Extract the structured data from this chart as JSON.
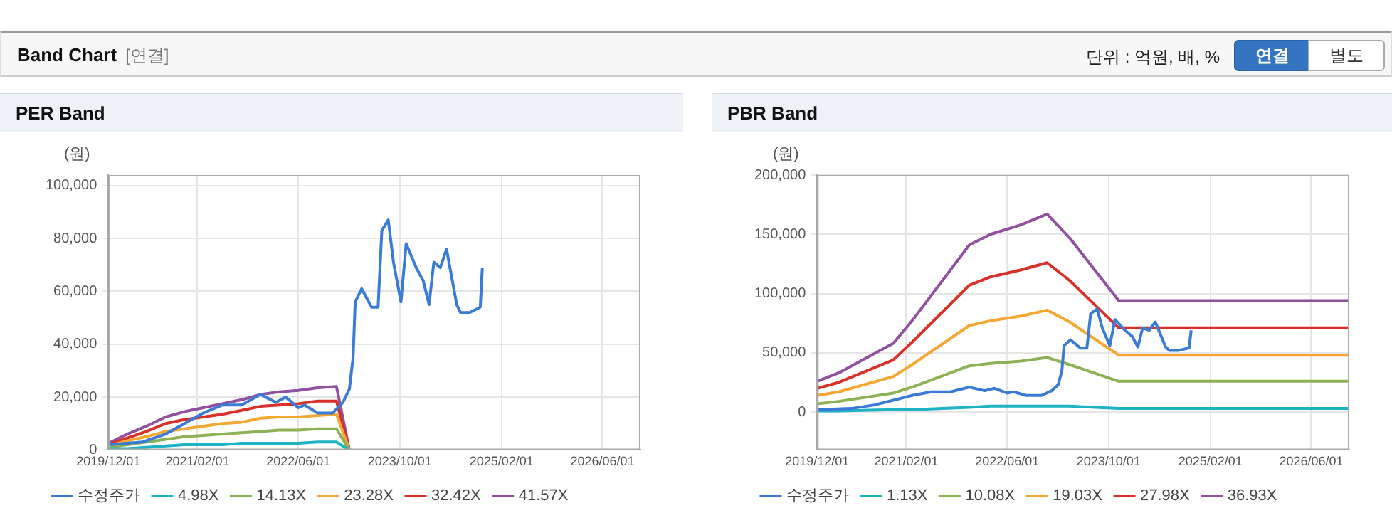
{
  "chart_data": [
    {
      "type": "other",
      "title": "Band Chart",
      "subtitle": "[연결]",
      "annotations": [
        "단위 : 억원, 배, %",
        "연결",
        "별도"
      ]
    },
    {
      "type": "line",
      "title": "PER Band",
      "ylabel": "(원)",
      "xlim": [
        "2019-12-01",
        "2026-12-01"
      ],
      "ylim": [
        0,
        104000
      ],
      "xticks": [
        {
          "value": "2019-12-01",
          "label": "2019/12/01"
        },
        {
          "value": "2021-02-01",
          "label": "2021/02/01"
        },
        {
          "value": "2022-06-01",
          "label": "2022/06/01"
        },
        {
          "value": "2023-10-01",
          "label": "2023/10/01"
        },
        {
          "value": "2025-02-01",
          "label": "2025/02/01"
        },
        {
          "value": "2026-06-01",
          "label": "2026/06/01"
        }
      ],
      "yticks": [
        {
          "value": 0,
          "label": "0"
        },
        {
          "value": 20000,
          "label": "20,000"
        },
        {
          "value": 40000,
          "label": "40,000"
        },
        {
          "value": 60000,
          "label": "60,000"
        },
        {
          "value": 80000,
          "label": "80,000"
        },
        {
          "value": 100000,
          "label": "100,000"
        }
      ],
      "grid": true,
      "legend": "bottom",
      "marker": "none",
      "series": [
        {
          "name": "수정주가",
          "color": "#3a7bd5",
          "x": [
            "2019-12-01",
            "2020-05-13",
            "2020-09-01",
            "2020-12-01",
            "2021-03-01",
            "2021-06-01",
            "2021-09-01",
            "2021-12-01",
            "2022-02-13",
            "2022-04-01",
            "2022-06-01",
            "2022-07-01",
            "2022-09-01",
            "2022-11-13",
            "2023-01-01",
            "2023-02-01",
            "2023-02-19",
            "2023-03-01",
            "2023-04-01",
            "2023-05-19",
            "2023-06-19",
            "2023-07-07",
            "2023-08-07",
            "2023-09-01",
            "2023-10-07",
            "2023-11-01",
            "2023-12-19",
            "2024-01-22",
            "2024-02-19",
            "2024-03-13",
            "2024-04-13",
            "2024-05-13",
            "2024-07-01",
            "2024-07-19",
            "2024-09-01",
            "2024-10-22",
            "2024-11-01"
          ],
          "values": [
            2000,
            3000,
            6000,
            10000,
            14000,
            17000,
            17000,
            21000,
            18000,
            20000,
            16000,
            17000,
            14000,
            14000,
            18000,
            23000,
            35000,
            56000,
            61000,
            54000,
            54000,
            83000,
            87000,
            71000,
            56000,
            78000,
            69000,
            64000,
            55000,
            71000,
            69000,
            76000,
            55000,
            52000,
            52000,
            54000,
            69000
          ]
        },
        {
          "name": "4.98X",
          "color": "#1eb3c4",
          "x": [
            "2019-12-01",
            "2020-03-01",
            "2020-06-01",
            "2020-09-01",
            "2020-12-01",
            "2021-03-01",
            "2021-06-01",
            "2021-09-01",
            "2021-12-01",
            "2022-03-01",
            "2022-06-01",
            "2022-09-01",
            "2022-12-01",
            "2023-02-01"
          ],
          "values": [
            500,
            500,
            1000,
            1500,
            2000,
            2000,
            2000,
            2500,
            2500,
            2500,
            2500,
            3000,
            3000,
            0
          ]
        },
        {
          "name": "14.13X",
          "color": "#8db255",
          "x": [
            "2019-12-01",
            "2020-03-01",
            "2020-06-01",
            "2020-09-01",
            "2020-12-01",
            "2021-03-01",
            "2021-06-01",
            "2021-09-01",
            "2021-12-01",
            "2022-03-01",
            "2022-06-01",
            "2022-09-01",
            "2022-12-01",
            "2023-02-01"
          ],
          "values": [
            1000,
            2000,
            3000,
            4000,
            5000,
            5500,
            6000,
            6500,
            7000,
            7500,
            7500,
            8000,
            8000,
            0
          ]
        },
        {
          "name": "23.28X",
          "color": "#f5a733",
          "x": [
            "2019-12-01",
            "2020-03-01",
            "2020-06-01",
            "2020-09-01",
            "2020-12-01",
            "2021-03-01",
            "2021-06-01",
            "2021-09-01",
            "2021-12-01",
            "2022-03-01",
            "2022-06-01",
            "2022-09-01",
            "2022-12-01",
            "2023-02-01"
          ],
          "values": [
            1500,
            3500,
            5000,
            7000,
            8000,
            9000,
            10000,
            10500,
            12000,
            12500,
            12500,
            13000,
            13500,
            0
          ]
        },
        {
          "name": "32.42X",
          "color": "#d9302a",
          "x": [
            "2019-12-01",
            "2020-03-01",
            "2020-06-01",
            "2020-09-01",
            "2020-12-01",
            "2021-03-01",
            "2021-06-01",
            "2021-09-01",
            "2021-12-01",
            "2022-03-01",
            "2022-06-01",
            "2022-09-01",
            "2022-12-01",
            "2023-02-01"
          ],
          "values": [
            2000,
            4500,
            7000,
            10000,
            11500,
            12500,
            13500,
            15000,
            16500,
            17000,
            17500,
            18500,
            18500,
            0
          ]
        },
        {
          "name": "41.57X",
          "color": "#91519e",
          "x": [
            "2019-12-01",
            "2020-03-01",
            "2020-06-01",
            "2020-09-01",
            "2020-12-01",
            "2021-03-01",
            "2021-06-01",
            "2021-09-01",
            "2021-12-01",
            "2022-03-01",
            "2022-06-01",
            "2022-09-01",
            "2022-12-01",
            "2023-02-01"
          ],
          "values": [
            2500,
            6000,
            9000,
            12500,
            14500,
            16000,
            17500,
            19000,
            21000,
            22000,
            22500,
            23500,
            24000,
            0
          ]
        }
      ]
    },
    {
      "type": "line",
      "title": "PBR Band",
      "ylabel": "(원)",
      "xlim": [
        "2019-12-01",
        "2026-12-01"
      ],
      "ylim": [
        -32000,
        200000
      ],
      "xticks": [
        {
          "value": "2019-12-01",
          "label": "2019/12/01"
        },
        {
          "value": "2021-02-01",
          "label": "2021/02/01"
        },
        {
          "value": "2022-06-01",
          "label": "2022/06/01"
        },
        {
          "value": "2023-10-01",
          "label": "2023/10/01"
        },
        {
          "value": "2025-02-01",
          "label": "2025/02/01"
        },
        {
          "value": "2026-06-01",
          "label": "2026/06/01"
        }
      ],
      "yticks": [
        {
          "value": 0,
          "label": "0"
        },
        {
          "value": 50000,
          "label": "50,000"
        },
        {
          "value": 100000,
          "label": "100,000"
        },
        {
          "value": 150000,
          "label": "150,000"
        },
        {
          "value": 200000,
          "label": "200,000"
        }
      ],
      "grid": true,
      "legend": "bottom",
      "marker": "none",
      "series": [
        {
          "name": "수정주가",
          "color": "#3a7bd5",
          "x": [
            "2019-12-01",
            "2020-05-13",
            "2020-09-01",
            "2020-12-01",
            "2021-03-01",
            "2021-06-01",
            "2021-09-01",
            "2021-12-01",
            "2022-02-13",
            "2022-04-01",
            "2022-06-01",
            "2022-07-01",
            "2022-09-01",
            "2022-11-13",
            "2023-01-01",
            "2023-02-01",
            "2023-02-19",
            "2023-03-01",
            "2023-04-01",
            "2023-05-19",
            "2023-06-19",
            "2023-07-07",
            "2023-08-07",
            "2023-09-01",
            "2023-10-07",
            "2023-11-01",
            "2023-12-19",
            "2024-01-22",
            "2024-02-19",
            "2024-03-13",
            "2024-04-13",
            "2024-05-13",
            "2024-07-01",
            "2024-07-19",
            "2024-09-01",
            "2024-10-22",
            "2024-11-01"
          ],
          "values": [
            2000,
            3000,
            6000,
            10000,
            14000,
            17000,
            17000,
            21000,
            18000,
            20000,
            16000,
            17000,
            14000,
            14000,
            18000,
            23000,
            35000,
            56000,
            61000,
            54000,
            54000,
            83000,
            87000,
            71000,
            56000,
            78000,
            69000,
            64000,
            55000,
            71000,
            69000,
            76000,
            55000,
            52000,
            52000,
            54000,
            69000
          ]
        },
        {
          "name": "1.13X",
          "color": "#1eb3c4",
          "x": [
            "2019-12-01",
            "2020-03-13",
            "2020-12-01",
            "2021-03-01",
            "2021-12-01",
            "2022-03-13",
            "2022-08-07",
            "2022-12-10",
            "2023-03-28",
            "2023-11-19",
            "2026-12-01"
          ],
          "values": [
            1000,
            1000,
            2000,
            2000,
            4000,
            5000,
            5000,
            5000,
            5000,
            3000,
            3000
          ]
        },
        {
          "name": "10.08X",
          "color": "#8db255",
          "x": [
            "2019-12-01",
            "2020-03-13",
            "2020-12-01",
            "2021-03-01",
            "2021-12-01",
            "2022-03-13",
            "2022-08-07",
            "2022-12-10",
            "2023-03-28",
            "2023-11-19",
            "2026-12-01"
          ],
          "values": [
            7000,
            9000,
            16000,
            21000,
            39000,
            41000,
            43000,
            46000,
            40000,
            26000,
            26000
          ]
        },
        {
          "name": "19.03X",
          "color": "#f5a733",
          "x": [
            "2019-12-01",
            "2020-03-13",
            "2020-12-01",
            "2021-03-01",
            "2021-12-01",
            "2022-03-13",
            "2022-08-07",
            "2022-12-10",
            "2023-03-28",
            "2023-11-19",
            "2026-12-01"
          ],
          "values": [
            14000,
            17000,
            30000,
            40000,
            73000,
            77000,
            81000,
            86000,
            76000,
            48000,
            48000
          ]
        },
        {
          "name": "27.98X",
          "color": "#d9302a",
          "x": [
            "2019-12-01",
            "2020-03-13",
            "2020-12-01",
            "2021-03-01",
            "2021-12-01",
            "2022-03-13",
            "2022-08-07",
            "2022-12-10",
            "2023-03-28",
            "2023-11-19",
            "2026-12-01"
          ],
          "values": [
            20000,
            25000,
            44000,
            59000,
            107000,
            114000,
            120000,
            126000,
            111000,
            71000,
            71000
          ]
        },
        {
          "name": "36.93X",
          "color": "#91519e",
          "x": [
            "2019-12-01",
            "2020-03-13",
            "2020-12-01",
            "2021-03-01",
            "2021-12-01",
            "2022-03-13",
            "2022-08-07",
            "2022-12-10",
            "2023-03-28",
            "2023-11-19",
            "2026-12-01"
          ],
          "values": [
            26000,
            33000,
            58000,
            77000,
            141000,
            150000,
            158000,
            167000,
            147000,
            94000,
            94000
          ]
        }
      ]
    }
  ]
}
